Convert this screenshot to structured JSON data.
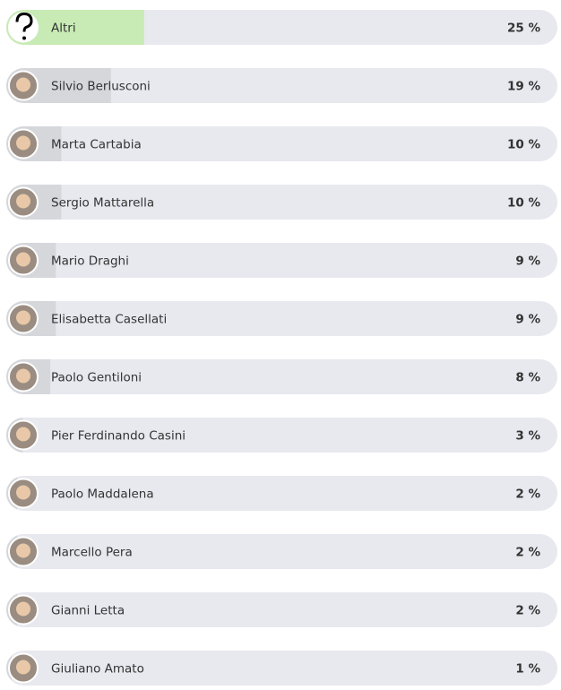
{
  "chart_data": {
    "type": "bar",
    "categories": [
      "Altri",
      "Silvio Berlusconi",
      "Marta Cartabia",
      "Sergio Mattarella",
      "Mario Draghi",
      "Elisabetta Casellati",
      "Paolo Gentiloni",
      "Pier Ferdinando Casini",
      "Paolo Maddalena",
      "Marcello Pera",
      "Gianni Letta",
      "Giuliano Amato"
    ],
    "values": [
      25,
      19,
      10,
      10,
      9,
      9,
      8,
      3,
      2,
      2,
      2,
      1
    ],
    "value_labels": [
      "25 %",
      "19 %",
      "10 %",
      "10 %",
      "9 %",
      "9 %",
      "8 %",
      "3 %",
      "2 %",
      "2 %",
      "2 %",
      "1 %"
    ],
    "colors": [
      "#c8ebb5",
      "#d5d7db",
      "#d5d7db",
      "#d5d7db",
      "#d5d7db",
      "#d5d7db",
      "#d5d7db",
      "#d5d7db",
      "#d5d7db",
      "#d5d7db",
      "#d5d7db",
      "#d5d7db"
    ],
    "track_color": "#e8e9ef",
    "xlim": [
      0,
      100
    ]
  }
}
